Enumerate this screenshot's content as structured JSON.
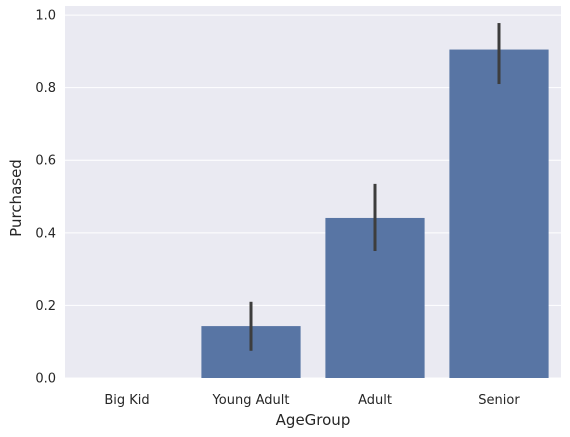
{
  "chart_data": {
    "type": "bar",
    "title": "",
    "xlabel": "AgeGroup",
    "ylabel": "Purchased",
    "categories": [
      "Big Kid",
      "Young Adult",
      "Adult",
      "Senior"
    ],
    "values": [
      0.0,
      0.143,
      0.441,
      0.905
    ],
    "error_low": [
      0.0,
      0.075,
      0.35,
      0.81
    ],
    "error_high": [
      0.0,
      0.21,
      0.535,
      0.978
    ],
    "ylim": [
      0,
      1.025
    ],
    "yticks": [
      "0.0",
      "0.2",
      "0.4",
      "0.6",
      "0.8",
      "1.0"
    ],
    "grid": true,
    "colors": {
      "background": "#eaeaf2",
      "bar": "#5875a4",
      "errorbar": "#3d3d3d",
      "grid": "#ffffff"
    }
  }
}
